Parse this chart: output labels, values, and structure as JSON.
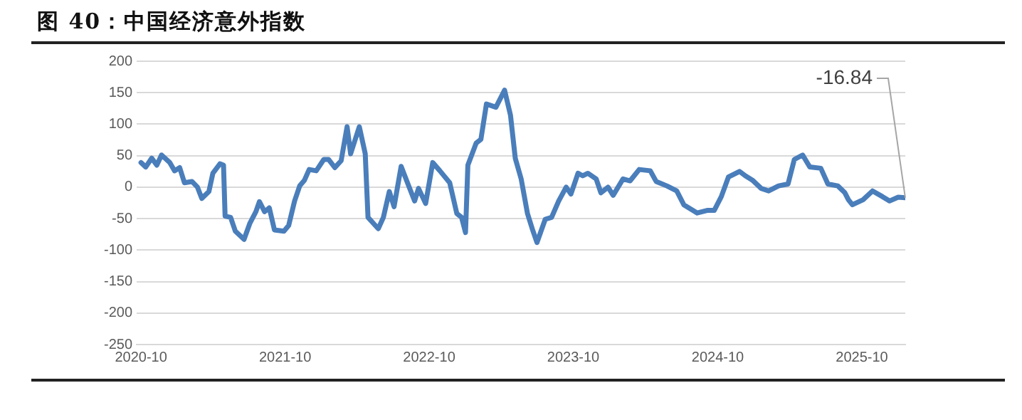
{
  "chart_data": {
    "type": "line",
    "title": "图 40：中国经济意外指数",
    "x": [
      "2020-10-01",
      "2020-10-13",
      "2020-10-28",
      "2020-11-10",
      "2020-11-22",
      "2020-12-13",
      "2020-12-25",
      "2021-01-07",
      "2021-01-19",
      "2021-02-07",
      "2021-02-21",
      "2021-03-04",
      "2021-03-22",
      "2021-04-01",
      "2021-04-19",
      "2021-04-28",
      "2021-05-02",
      "2021-05-16",
      "2021-05-28",
      "2021-06-19",
      "2021-07-04",
      "2021-07-19",
      "2021-07-28",
      "2021-08-10",
      "2021-08-22",
      "2021-09-04",
      "2021-09-28",
      "2021-10-10",
      "2021-10-25",
      "2021-11-07",
      "2021-11-19",
      "2021-12-01",
      "2021-12-19",
      "2022-01-07",
      "2022-01-19",
      "2022-02-04",
      "2022-02-20",
      "2022-03-07",
      "2022-03-16",
      "2022-04-07",
      "2022-04-22",
      "2022-04-29",
      "2022-05-25",
      "2022-06-07",
      "2022-06-22",
      "2022-07-04",
      "2022-07-22",
      "2022-08-07",
      "2022-08-25",
      "2022-09-04",
      "2022-09-22",
      "2022-10-10",
      "2022-10-28",
      "2022-11-22",
      "2022-12-10",
      "2022-12-22",
      "2023-01-01",
      "2023-01-07",
      "2023-01-28",
      "2023-02-09",
      "2023-02-23",
      "2023-03-19",
      "2023-04-10",
      "2023-04-25",
      "2023-05-07",
      "2023-05-22",
      "2023-06-07",
      "2023-06-19",
      "2023-07-01",
      "2023-07-22",
      "2023-08-07",
      "2023-08-25",
      "2023-09-13",
      "2023-09-25",
      "2023-10-13",
      "2023-10-25",
      "2023-11-07",
      "2023-11-28",
      "2023-12-10",
      "2023-12-28",
      "2024-01-10",
      "2024-02-04",
      "2024-02-22",
      "2024-03-16",
      "2024-04-13",
      "2024-04-28",
      "2024-05-25",
      "2024-06-19",
      "2024-07-07",
      "2024-08-10",
      "2024-09-04",
      "2024-09-22",
      "2024-10-10",
      "2024-10-28",
      "2024-11-25",
      "2024-12-10",
      "2024-12-28",
      "2025-01-19",
      "2025-02-07",
      "2025-03-04",
      "2025-03-28",
      "2025-04-13",
      "2025-05-04",
      "2025-05-22",
      "2025-06-19",
      "2025-07-07",
      "2025-08-01",
      "2025-08-19",
      "2025-08-28",
      "2025-09-07",
      "2025-10-04",
      "2025-10-28",
      "2025-11-22",
      "2025-12-10",
      "2026-01-01",
      "2026-01-19"
    ],
    "series": [
      {
        "color": "#4a7ebb",
        "values": [
          39,
          32,
          46,
          35,
          51,
          39,
          26,
          31,
          7,
          9,
          0,
          -18,
          -7,
          22,
          37,
          35,
          -46,
          -48,
          -70,
          -83,
          -57,
          -39,
          -23,
          -39,
          -33,
          -68,
          -70,
          -61,
          -22,
          2,
          11,
          28,
          26,
          44,
          44,
          31,
          42,
          96,
          53,
          96,
          53,
          -48,
          -66,
          -48,
          -7,
          -31,
          33,
          7,
          -22,
          -2,
          -26,
          39,
          26,
          7,
          -42,
          -48,
          -72,
          35,
          70,
          76,
          132,
          127,
          154,
          114,
          46,
          13,
          -42,
          -66,
          -88,
          -51,
          -48,
          -22,
          0,
          -11,
          22,
          18,
          22,
          13,
          -9,
          0,
          -13,
          13,
          10,
          28,
          26,
          9,
          2,
          -6,
          -28,
          -41,
          -37,
          -37,
          -15,
          16,
          25,
          18,
          11,
          -2,
          -6,
          2,
          5,
          44,
          51,
          32,
          30,
          5,
          2,
          -9,
          -20,
          -28,
          -20,
          -6,
          -15,
          -22,
          -16,
          -16.84
        ]
      }
    ],
    "xlim": [
      "2020-09-20",
      "2026-01-19"
    ],
    "xticks": [
      "2020-10",
      "2021-10",
      "2022-10",
      "2023-10",
      "2024-10",
      "2025-10"
    ],
    "ylim": [
      -250,
      200
    ],
    "yticks": [
      -250,
      -200,
      -150,
      -100,
      -50,
      0,
      50,
      100,
      150,
      200
    ],
    "grid": "y",
    "legend": false,
    "marker": "none",
    "line_style": "solid",
    "annotations": [
      {
        "text": "-16.84",
        "x": "2026-01-19",
        "y": -16.84
      }
    ]
  }
}
